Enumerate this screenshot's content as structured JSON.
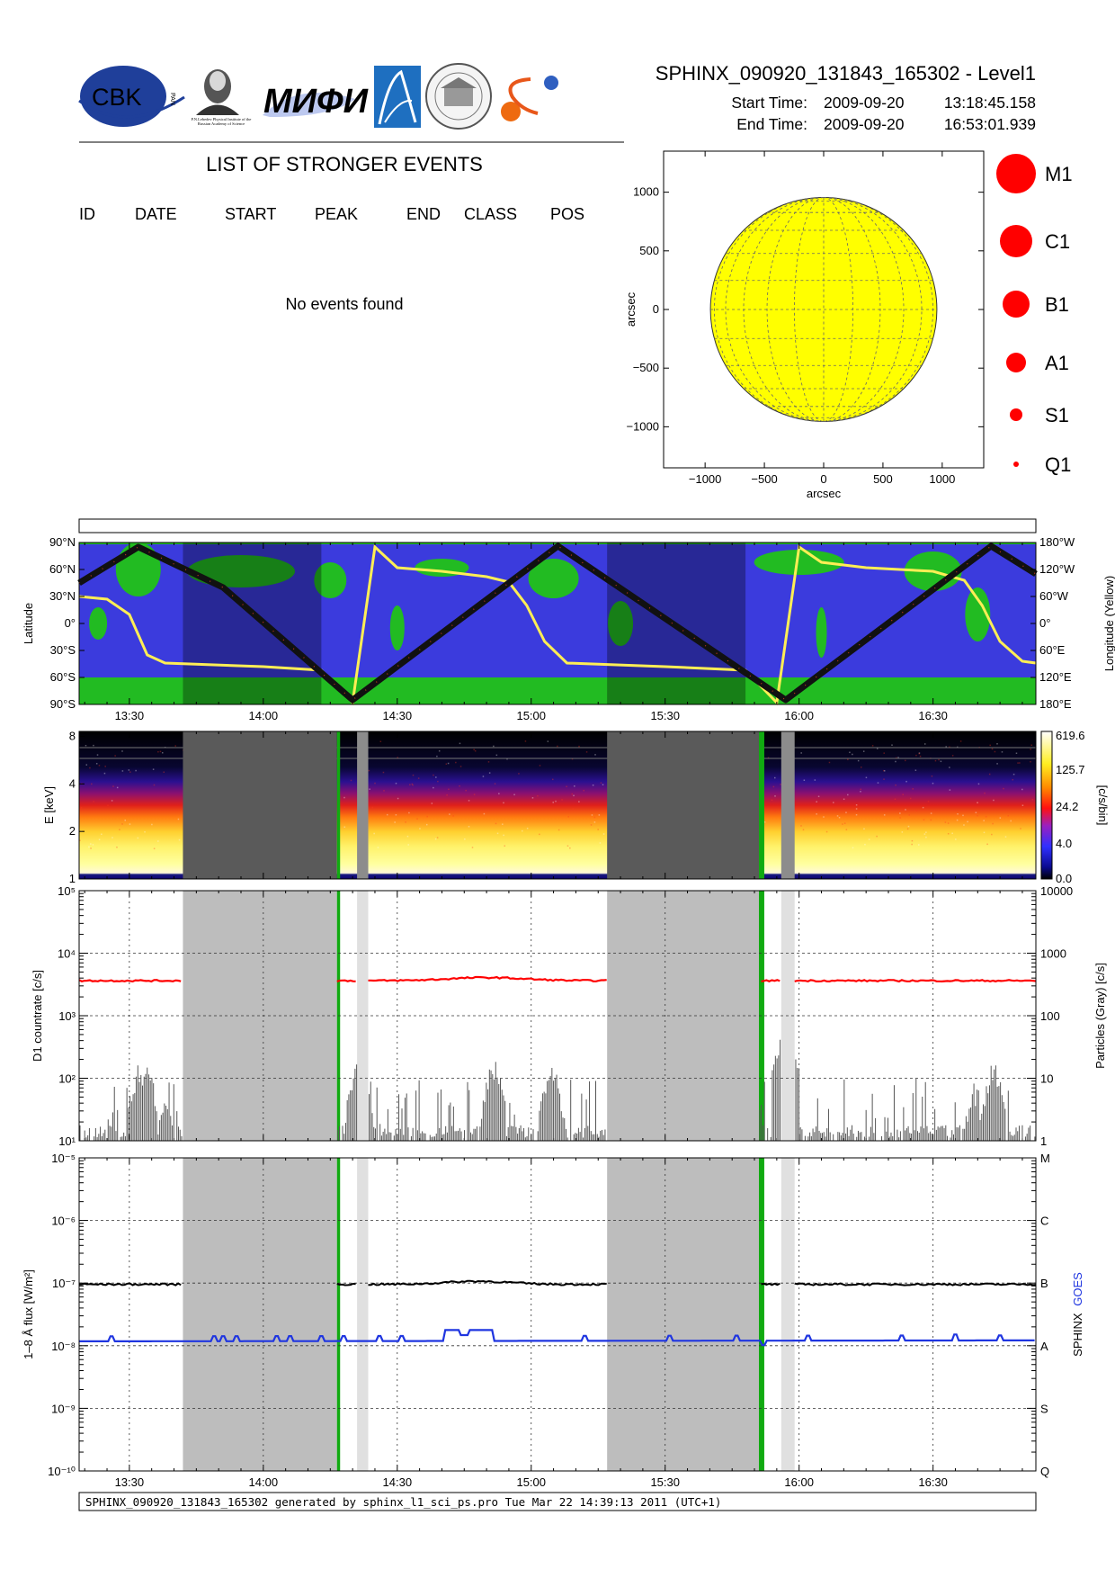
{
  "header": {
    "product_title": "SPHINX_090920_131843_165302 - Level1",
    "start_label": "Start Time:",
    "start_date": "2009-09-20",
    "start_time": "13:18:45.158",
    "end_label": "End Time:",
    "end_date": "2009-09-20",
    "end_time": "16:53:01.939"
  },
  "logos": {
    "cbk_text": "CBK",
    "cbk_pan": "PAN",
    "lebedev_caption": "P.N.Lebedev Physical Institute of the Russian Academy of Science",
    "mifi_text": "МИФИ",
    "colors": {
      "cbk_blue": "#1f3f9a",
      "mifi_blue": "#3a4fb0",
      "ipa_blue": "#1e6fc0"
    }
  },
  "events": {
    "title": "LIST OF STRONGER EVENTS",
    "columns": [
      "ID",
      "DATE",
      "START",
      "PEAK",
      "END",
      "CLASS",
      "POS"
    ],
    "message": "No events found"
  },
  "disk": {
    "xlabel": "arcsec",
    "ylabel": "arcsec",
    "ticks": [
      "−1000",
      "−500",
      "0",
      "500",
      "1000"
    ],
    "tick_values": [
      -1000,
      -500,
      0,
      500,
      1000
    ],
    "range": [
      -1350,
      1350
    ],
    "radius": 955,
    "fill": "#ffff00"
  },
  "size_legend": [
    {
      "label": "M1",
      "r": 22
    },
    {
      "label": "C1",
      "r": 18
    },
    {
      "label": "B1",
      "r": 15
    },
    {
      "label": "A1",
      "r": 11
    },
    {
      "label": "S1",
      "r": 7
    },
    {
      "label": "Q1",
      "r": 3
    }
  ],
  "time_axis": {
    "start_min": 798.75,
    "end_min": 1013.03,
    "tick_values": [
      810,
      840,
      870,
      900,
      930,
      960,
      990
    ],
    "tick_labels": [
      "13:30",
      "14:00",
      "14:30",
      "15:00",
      "15:30",
      "16:00",
      "16:30"
    ]
  },
  "orbit": {
    "ylabel": "Latitude",
    "ylabel_right": "Longitude (Yellow)",
    "lat_labels": [
      "90°N",
      "60°N",
      "30°N",
      "0°",
      "30°S",
      "60°S",
      "90°S"
    ],
    "lon_labels": [
      "180°W",
      "120°W",
      "60°W",
      "0°",
      "60°E",
      "120°E",
      "180°E"
    ],
    "lat_track": [
      [
        798.75,
        45
      ],
      [
        812,
        85
      ],
      [
        831,
        40
      ],
      [
        860,
        -85
      ],
      [
        906,
        86
      ],
      [
        957,
        -85
      ],
      [
        1003,
        86
      ],
      [
        1013.03,
        55
      ]
    ],
    "lon_track": [
      [
        798.75,
        30
      ],
      [
        805,
        27
      ],
      [
        810,
        10
      ],
      [
        814,
        -35
      ],
      [
        818,
        -44
      ],
      [
        840,
        -48
      ],
      [
        853,
        -52
      ],
      [
        860,
        -88
      ],
      [
        865,
        85
      ],
      [
        870,
        62
      ],
      [
        880,
        58
      ],
      [
        890,
        52
      ],
      [
        895,
        46
      ],
      [
        899,
        20
      ],
      [
        903,
        -20
      ],
      [
        908,
        -44
      ],
      [
        930,
        -48
      ],
      [
        948,
        -52
      ],
      [
        955,
        -88
      ],
      [
        960,
        85
      ],
      [
        965,
        68
      ],
      [
        975,
        62
      ],
      [
        990,
        58
      ],
      [
        997,
        48
      ],
      [
        1001,
        20
      ],
      [
        1005,
        -20
      ],
      [
        1010,
        -42
      ],
      [
        1013.03,
        -44
      ]
    ],
    "dark_bands": [
      [
        822,
        853
      ],
      [
        917,
        948
      ]
    ],
    "colors": {
      "ocean": "#3b3bdd",
      "land": "#22bb22",
      "track": "#111111",
      "lon": "#ffee55"
    }
  },
  "spectrogram": {
    "ylabel": "E [keV]",
    "y_ticks": [
      "1",
      "2",
      "4",
      "8"
    ],
    "y_tick_values": [
      1,
      2,
      4,
      8
    ],
    "colorbar_labels": [
      "619.6",
      "125.7",
      "24.2",
      "4.0",
      "0.0"
    ],
    "colorbar_unit": "[c/s/bin]"
  },
  "gaps": {
    "dark": [
      [
        822,
        856.5
      ],
      [
        917,
        951
      ]
    ],
    "light": [
      [
        861,
        863.5
      ],
      [
        956,
        959
      ]
    ],
    "green": [
      [
        856.5,
        857.2
      ],
      [
        951,
        952.2
      ]
    ]
  },
  "countrate": {
    "ylabel": "D1 countrate [c/s]",
    "ylabel_right": "Particles (Gray) [c/s]",
    "y_ticks": [
      "10¹",
      "10²",
      "10³",
      "10⁴",
      "10⁵"
    ],
    "y_tick_values": [
      1,
      2,
      3,
      4,
      5
    ],
    "right_ticks": [
      "1",
      "10",
      "100",
      "1000",
      "10000"
    ],
    "level_log": 3.56,
    "color": "#ff0000"
  },
  "flux": {
    "ylabel": "1–8 Å flux [W/m²]",
    "y_ticks": [
      "10⁻¹⁰",
      "10⁻⁹",
      "10⁻⁸",
      "10⁻⁷",
      "10⁻⁶",
      "10⁻⁵"
    ],
    "y_tick_values": [
      -10,
      -9,
      -8,
      -7,
      -6,
      -5
    ],
    "class_labels": [
      "Q",
      "S",
      "A",
      "B",
      "C",
      "M"
    ],
    "sphinx_level": -7.02,
    "goes_level": -7.93,
    "right_label_sphinx": "SPHINX",
    "right_label_goes": "GOES",
    "colors": {
      "sphinx": "#000000",
      "goes": "#1f35e0"
    }
  },
  "footer": {
    "text": "SPHINX_090920_131843_165302 generated by sphinx_l1_sci_ps.pro Tue Mar 22 14:39:13 2011 (UTC+1)"
  }
}
